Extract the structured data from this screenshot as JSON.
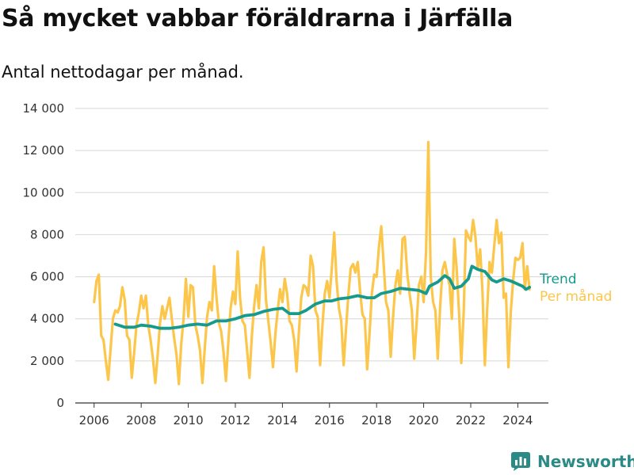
{
  "header": {
    "title": "Så mycket vabbar föräldrarna i Järfälla",
    "subtitle": "Antal nettodagar per månad."
  },
  "brand": {
    "name": "Newsworthy",
    "icon": "newsworthy-chart-icon"
  },
  "colors": {
    "monthly": "#fbc64a",
    "trend": "#179a8e",
    "grid": "#d6d6d6",
    "axis": "#333333",
    "brand": "#2b8a86"
  },
  "chart_data": {
    "type": "line",
    "title": "Så mycket vabbar föräldrarna i Järfälla",
    "subtitle": "Antal nettodagar per månad.",
    "xlabel": "",
    "ylabel": "",
    "xlim": [
      2005.2,
      2025.3
    ],
    "ylim": [
      0,
      14000
    ],
    "x_ticks": [
      2006,
      2008,
      2010,
      2012,
      2014,
      2016,
      2018,
      2020,
      2022,
      2024
    ],
    "y_ticks": [
      0,
      2000,
      4000,
      6000,
      8000,
      10000,
      12000,
      14000
    ],
    "y_tick_labels": [
      "0",
      "2 000",
      "4 000",
      "6 000",
      "8 000",
      "10 000",
      "12 000",
      "14 000"
    ],
    "grid": "horizontal",
    "legend": "right, at series end",
    "series": [
      {
        "name": "Per månad",
        "color": "#fbc64a",
        "points": [
          [
            2006.0,
            4800
          ],
          [
            2006.1,
            5800
          ],
          [
            2006.2,
            6100
          ],
          [
            2006.3,
            3200
          ],
          [
            2006.4,
            3000
          ],
          [
            2006.5,
            2000
          ],
          [
            2006.6,
            1100
          ],
          [
            2006.7,
            2600
          ],
          [
            2006.8,
            4000
          ],
          [
            2006.9,
            4400
          ],
          [
            2007.0,
            4300
          ],
          [
            2007.1,
            4600
          ],
          [
            2007.2,
            5500
          ],
          [
            2007.3,
            4900
          ],
          [
            2007.4,
            3200
          ],
          [
            2007.5,
            3000
          ],
          [
            2007.6,
            1200
          ],
          [
            2007.7,
            2400
          ],
          [
            2007.8,
            3700
          ],
          [
            2007.9,
            4300
          ],
          [
            2008.0,
            5100
          ],
          [
            2008.1,
            4500
          ],
          [
            2008.2,
            5100
          ],
          [
            2008.3,
            3700
          ],
          [
            2008.4,
            3000
          ],
          [
            2008.5,
            2100
          ],
          [
            2008.6,
            950
          ],
          [
            2008.7,
            2300
          ],
          [
            2008.8,
            3800
          ],
          [
            2008.9,
            4600
          ],
          [
            2009.0,
            4000
          ],
          [
            2009.1,
            4500
          ],
          [
            2009.2,
            5000
          ],
          [
            2009.3,
            4000
          ],
          [
            2009.4,
            3100
          ],
          [
            2009.5,
            2300
          ],
          [
            2009.6,
            900
          ],
          [
            2009.7,
            2800
          ],
          [
            2009.8,
            4000
          ],
          [
            2009.9,
            5900
          ],
          [
            2010.0,
            4100
          ],
          [
            2010.1,
            5600
          ],
          [
            2010.2,
            5500
          ],
          [
            2010.3,
            3700
          ],
          [
            2010.4,
            3200
          ],
          [
            2010.5,
            2500
          ],
          [
            2010.6,
            950
          ],
          [
            2010.7,
            2600
          ],
          [
            2010.8,
            4100
          ],
          [
            2010.9,
            4800
          ],
          [
            2011.0,
            4400
          ],
          [
            2011.1,
            6500
          ],
          [
            2011.2,
            5000
          ],
          [
            2011.3,
            3800
          ],
          [
            2011.4,
            3400
          ],
          [
            2011.5,
            2400
          ],
          [
            2011.6,
            1050
          ],
          [
            2011.7,
            2900
          ],
          [
            2011.8,
            4500
          ],
          [
            2011.9,
            5300
          ],
          [
            2012.0,
            4700
          ],
          [
            2012.1,
            7200
          ],
          [
            2012.2,
            5000
          ],
          [
            2012.3,
            3900
          ],
          [
            2012.4,
            3700
          ],
          [
            2012.5,
            2500
          ],
          [
            2012.6,
            1200
          ],
          [
            2012.7,
            3200
          ],
          [
            2012.8,
            4600
          ],
          [
            2012.9,
            5600
          ],
          [
            2013.0,
            4500
          ],
          [
            2013.1,
            6700
          ],
          [
            2013.2,
            7400
          ],
          [
            2013.3,
            4900
          ],
          [
            2013.4,
            3900
          ],
          [
            2013.5,
            2900
          ],
          [
            2013.6,
            1700
          ],
          [
            2013.7,
            3300
          ],
          [
            2013.8,
            4400
          ],
          [
            2013.9,
            5400
          ],
          [
            2014.0,
            4800
          ],
          [
            2014.1,
            5900
          ],
          [
            2014.2,
            5200
          ],
          [
            2014.3,
            3900
          ],
          [
            2014.4,
            3700
          ],
          [
            2014.5,
            3000
          ],
          [
            2014.6,
            1500
          ],
          [
            2014.7,
            3400
          ],
          [
            2014.8,
            5000
          ],
          [
            2014.9,
            5600
          ],
          [
            2015.0,
            5500
          ],
          [
            2015.1,
            5100
          ],
          [
            2015.2,
            7000
          ],
          [
            2015.3,
            6500
          ],
          [
            2015.4,
            4400
          ],
          [
            2015.5,
            4100
          ],
          [
            2015.6,
            1800
          ],
          [
            2015.7,
            3700
          ],
          [
            2015.8,
            5200
          ],
          [
            2015.9,
            5800
          ],
          [
            2016.0,
            5000
          ],
          [
            2016.1,
            6400
          ],
          [
            2016.2,
            8100
          ],
          [
            2016.3,
            5800
          ],
          [
            2016.4,
            4500
          ],
          [
            2016.5,
            3900
          ],
          [
            2016.6,
            1800
          ],
          [
            2016.7,
            3500
          ],
          [
            2016.8,
            5100
          ],
          [
            2016.9,
            6400
          ],
          [
            2017.0,
            6600
          ],
          [
            2017.1,
            6200
          ],
          [
            2017.2,
            6700
          ],
          [
            2017.3,
            5300
          ],
          [
            2017.4,
            4200
          ],
          [
            2017.5,
            4000
          ],
          [
            2017.6,
            1600
          ],
          [
            2017.7,
            3300
          ],
          [
            2017.8,
            5200
          ],
          [
            2017.9,
            6100
          ],
          [
            2018.0,
            6000
          ],
          [
            2018.1,
            7400
          ],
          [
            2018.2,
            8400
          ],
          [
            2018.3,
            6600
          ],
          [
            2018.4,
            4800
          ],
          [
            2018.5,
            4400
          ],
          [
            2018.6,
            2200
          ],
          [
            2018.7,
            4100
          ],
          [
            2018.8,
            5600
          ],
          [
            2018.9,
            6300
          ],
          [
            2019.0,
            5200
          ],
          [
            2019.1,
            7800
          ],
          [
            2019.2,
            7900
          ],
          [
            2019.3,
            6200
          ],
          [
            2019.4,
            5200
          ],
          [
            2019.5,
            4400
          ],
          [
            2019.6,
            2100
          ],
          [
            2019.7,
            3800
          ],
          [
            2019.8,
            5600
          ],
          [
            2019.9,
            6000
          ],
          [
            2020.0,
            4800
          ],
          [
            2020.1,
            7200
          ],
          [
            2020.2,
            12400
          ],
          [
            2020.3,
            6000
          ],
          [
            2020.4,
            4800
          ],
          [
            2020.5,
            4400
          ],
          [
            2020.6,
            2100
          ],
          [
            2020.7,
            4600
          ],
          [
            2020.8,
            6300
          ],
          [
            2020.9,
            6700
          ],
          [
            2021.0,
            6100
          ],
          [
            2021.1,
            5600
          ],
          [
            2021.2,
            4000
          ],
          [
            2021.3,
            7800
          ],
          [
            2021.4,
            6400
          ],
          [
            2021.5,
            4400
          ],
          [
            2021.6,
            1900
          ],
          [
            2021.7,
            4300
          ],
          [
            2021.8,
            8200
          ],
          [
            2021.9,
            7900
          ],
          [
            2022.0,
            7700
          ],
          [
            2022.1,
            8700
          ],
          [
            2022.2,
            7900
          ],
          [
            2022.3,
            6400
          ],
          [
            2022.4,
            7300
          ],
          [
            2022.5,
            5300
          ],
          [
            2022.6,
            1800
          ],
          [
            2022.7,
            4500
          ],
          [
            2022.8,
            6700
          ],
          [
            2022.9,
            6200
          ],
          [
            2023.0,
            7500
          ],
          [
            2023.1,
            8700
          ],
          [
            2023.2,
            7600
          ],
          [
            2023.3,
            8100
          ],
          [
            2023.4,
            5000
          ],
          [
            2023.5,
            5200
          ],
          [
            2023.6,
            1700
          ],
          [
            2023.7,
            4300
          ],
          [
            2023.8,
            5800
          ],
          [
            2023.9,
            6900
          ],
          [
            2024.0,
            6800
          ],
          [
            2024.1,
            6900
          ],
          [
            2024.2,
            7600
          ],
          [
            2024.3,
            5400
          ],
          [
            2024.4,
            6500
          ],
          [
            2024.5,
            5400
          ]
        ]
      },
      {
        "name": "Trend",
        "color": "#179a8e",
        "points": [
          [
            2006.9,
            3750
          ],
          [
            2007.3,
            3600
          ],
          [
            2007.7,
            3600
          ],
          [
            2008.0,
            3700
          ],
          [
            2008.4,
            3650
          ],
          [
            2008.8,
            3550
          ],
          [
            2009.2,
            3550
          ],
          [
            2009.6,
            3600
          ],
          [
            2010.0,
            3700
          ],
          [
            2010.4,
            3750
          ],
          [
            2010.8,
            3700
          ],
          [
            2011.2,
            3900
          ],
          [
            2011.6,
            3900
          ],
          [
            2012.0,
            4000
          ],
          [
            2012.4,
            4150
          ],
          [
            2012.8,
            4200
          ],
          [
            2013.2,
            4350
          ],
          [
            2013.6,
            4450
          ],
          [
            2014.0,
            4500
          ],
          [
            2014.3,
            4250
          ],
          [
            2014.7,
            4250
          ],
          [
            2015.0,
            4400
          ],
          [
            2015.4,
            4700
          ],
          [
            2015.8,
            4850
          ],
          [
            2016.1,
            4850
          ],
          [
            2016.4,
            4950
          ],
          [
            2016.8,
            5000
          ],
          [
            2017.2,
            5100
          ],
          [
            2017.6,
            5000
          ],
          [
            2017.9,
            5000
          ],
          [
            2018.2,
            5200
          ],
          [
            2018.6,
            5300
          ],
          [
            2019.0,
            5450
          ],
          [
            2019.4,
            5400
          ],
          [
            2019.8,
            5350
          ],
          [
            2020.1,
            5200
          ],
          [
            2020.25,
            5550
          ],
          [
            2020.6,
            5750
          ],
          [
            2020.9,
            6050
          ],
          [
            2021.1,
            5900
          ],
          [
            2021.3,
            5450
          ],
          [
            2021.6,
            5550
          ],
          [
            2021.9,
            5900
          ],
          [
            2022.05,
            6500
          ],
          [
            2022.3,
            6350
          ],
          [
            2022.6,
            6250
          ],
          [
            2022.9,
            5850
          ],
          [
            2023.1,
            5750
          ],
          [
            2023.4,
            5900
          ],
          [
            2023.7,
            5800
          ],
          [
            2024.0,
            5650
          ],
          [
            2024.2,
            5550
          ],
          [
            2024.35,
            5400
          ],
          [
            2024.5,
            5500
          ]
        ]
      }
    ]
  }
}
